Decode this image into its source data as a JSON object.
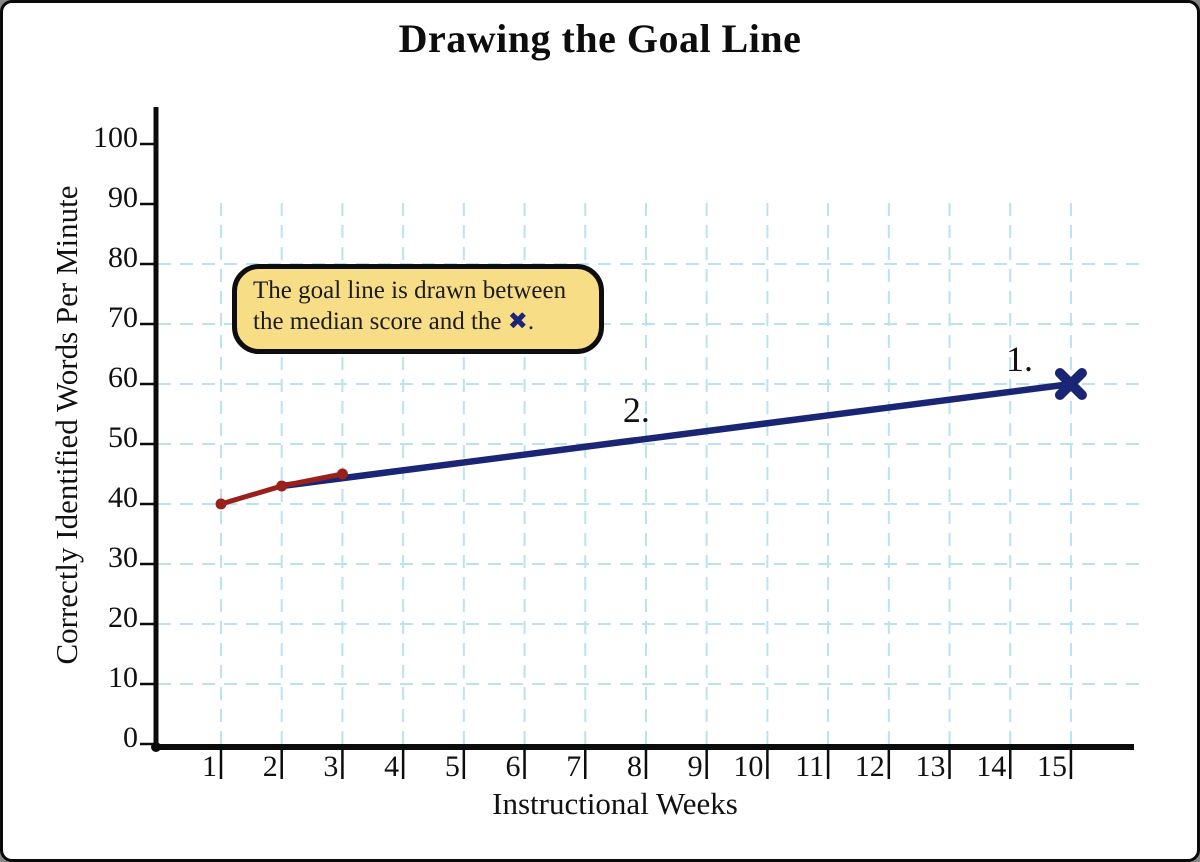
{
  "page": {
    "background": "#ffffff",
    "border_color": "#0a0a0a"
  },
  "callout": {
    "line1": "The goal line is drawn between",
    "line2_prefix": "the median score and the ",
    "symbol": "✖",
    "line2_suffix": ".",
    "fill": "#f8dd87",
    "border_color": "#0d0d0d",
    "symbol_color": "#1b2575"
  },
  "chart_data": {
    "type": "line",
    "title": "Drawing the Goal Line",
    "xlabel": "Instructional Weeks",
    "ylabel": "Correctly Identified Words Per Minute",
    "x_ticks": [
      1,
      2,
      3,
      4,
      5,
      6,
      7,
      8,
      9,
      10,
      11,
      12,
      13,
      14,
      15
    ],
    "y_ticks": [
      0,
      10,
      20,
      30,
      40,
      50,
      60,
      70,
      80,
      90,
      100
    ],
    "xlim": [
      0,
      16
    ],
    "ylim": [
      0,
      100
    ],
    "axis_color": "#0c0c0c",
    "grid": {
      "style": "dashed",
      "color": "#b9e2f3",
      "vertical_at_weeks": [
        1,
        2,
        3,
        4,
        5,
        6,
        7,
        8,
        9,
        10,
        11,
        12,
        13,
        14,
        15
      ],
      "horizontal_at_values": [
        10,
        20,
        30,
        40,
        50,
        60,
        70,
        80
      ]
    },
    "series": [
      {
        "name": "goal-line",
        "color": "#1b2575",
        "points": [
          {
            "week": 2,
            "value": 43
          },
          {
            "week": 15,
            "value": 60
          }
        ],
        "end_marker": "X"
      },
      {
        "name": "student-scores",
        "color": "#9a201c",
        "points": [
          {
            "week": 1,
            "value": 40
          },
          {
            "week": 2,
            "value": 43
          },
          {
            "week": 3,
            "value": 45
          }
        ],
        "point_markers": "dot"
      }
    ],
    "annotations": [
      {
        "label": "1.",
        "week": 13.93,
        "value": 62.2
      },
      {
        "label": "2.",
        "week": 7.62,
        "value": 53.7
      }
    ]
  }
}
